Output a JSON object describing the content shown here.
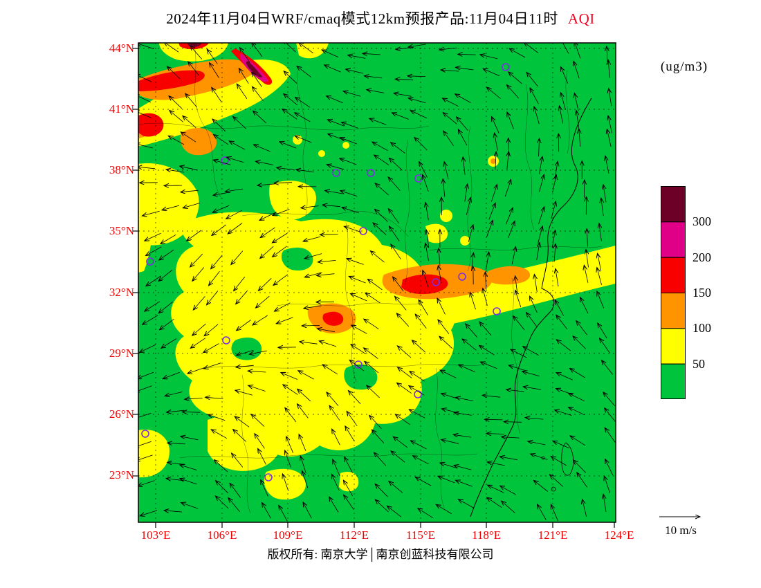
{
  "title": {
    "main": "2024年11月04日WRF/cmaq模式12km预报产品:11月04日11时",
    "highlight": "AQI"
  },
  "units_label": "(ug/m3)",
  "axes": {
    "lat": [
      "44°N",
      "41°N",
      "38°N",
      "35°N",
      "32°N",
      "29°N",
      "26°N",
      "23°N"
    ],
    "lon": [
      "103°E",
      "106°E",
      "109°E",
      "112°E",
      "115°E",
      "118°E",
      "121°E",
      "124°E"
    ]
  },
  "colorbar": {
    "labels": [
      "300",
      "200",
      "150",
      "100",
      "50"
    ],
    "colors": [
      "#6d0026",
      "#e00087",
      "#f80000",
      "#ff9400",
      "#ffff00",
      "#00c43c"
    ]
  },
  "wind_legend": {
    "label": "10 m/s"
  },
  "footer": {
    "copyright": "版权所有: 南京大学│南京创蓝科技有限公司"
  },
  "map": {
    "field_name": "AQI",
    "palette": {
      "green": "#00c43c",
      "yellow": "#ffff00",
      "orange": "#ff9400",
      "red": "#f80000",
      "magenta": "#e00087",
      "maroon": "#6d0026"
    }
  }
}
